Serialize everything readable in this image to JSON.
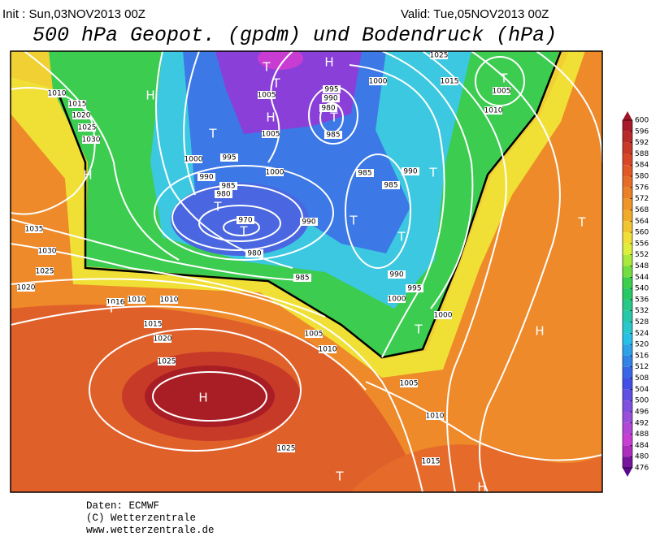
{
  "header": {
    "init": "Init : Sun,03NOV2013 00Z",
    "valid": "Valid: Tue,05NOV2013 00Z",
    "title": "500 hPa Geopot. (gpdm) und Bodendruck (hPa)"
  },
  "map": {
    "pressure_labels": [
      1010,
      1015,
      1020,
      1025,
      1030,
      1005,
      1005,
      995,
      990,
      980,
      985,
      1000,
      1015,
      1010,
      1005,
      1025,
      1000,
      995,
      1000,
      990,
      985,
      980,
      970,
      980,
      990,
      985,
      985,
      990,
      985,
      990,
      995,
      1000,
      1035,
      1030,
      1025,
      1020,
      1016,
      1010,
      1010,
      1015,
      1020,
      1025,
      1005,
      1010,
      1000,
      1005,
      1010,
      1015,
      1025
    ],
    "centers": [
      "H",
      "H",
      "T",
      "H",
      "T",
      "H",
      "T",
      "T",
      "T",
      "T",
      "T",
      "T",
      "T",
      "T",
      "T",
      "T",
      "T",
      "H",
      "H",
      "T",
      "H"
    ]
  },
  "colorbar": {
    "levels": [
      600,
      596,
      592,
      588,
      584,
      580,
      576,
      572,
      568,
      564,
      560,
      556,
      552,
      548,
      544,
      540,
      536,
      532,
      528,
      524,
      520,
      516,
      512,
      508,
      504,
      500,
      496,
      492,
      488,
      484,
      480,
      476
    ]
  },
  "footer": {
    "source": "Daten: ECMWF",
    "copyright": "(C) Wetterzentrale",
    "url": "www.wetterzentrale.de"
  }
}
